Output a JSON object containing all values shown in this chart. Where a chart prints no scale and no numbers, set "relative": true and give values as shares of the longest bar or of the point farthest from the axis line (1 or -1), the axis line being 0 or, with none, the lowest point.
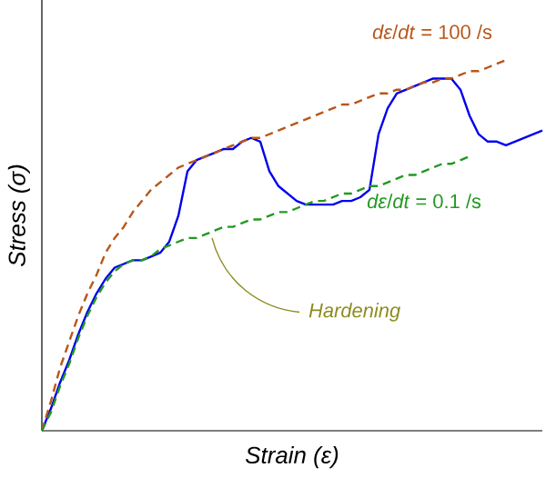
{
  "chart_data": {
    "type": "line",
    "relative": true,
    "xlabel": "Strain (ε)",
    "ylabel": "Stress (σ)",
    "categories": [
      null,
      null,
      null,
      null,
      null,
      null,
      null,
      null,
      null,
      null,
      null,
      null,
      null,
      null,
      null,
      null,
      null,
      null,
      null,
      null,
      null,
      null,
      null,
      null,
      null,
      null,
      null,
      null,
      null,
      null,
      null,
      null,
      null,
      null,
      null,
      null,
      null,
      null,
      null,
      null,
      null,
      null,
      null,
      null,
      null,
      null,
      null,
      null,
      null,
      null,
      null,
      null,
      null,
      null,
      null,
      null
    ],
    "series": [
      {
        "color": "#0000ee",
        "line_style": "solid",
        "values": [
          0,
          0.06,
          0.13,
          0.19,
          0.26,
          0.32,
          0.37,
          0.41,
          0.44,
          0.45,
          0.46,
          0.46,
          0.47,
          0.48,
          0.51,
          0.58,
          0.7,
          0.73,
          0.74,
          0.75,
          0.76,
          0.76,
          0.78,
          0.79,
          0.78,
          0.7,
          0.66,
          0.64,
          0.62,
          0.61,
          0.61,
          0.61,
          0.61,
          0.62,
          0.62,
          0.63,
          0.65,
          0.8,
          0.87,
          0.91,
          0.92,
          0.93,
          0.94,
          0.95,
          0.95,
          0.95,
          0.92,
          0.85,
          0.8,
          0.78,
          0.78,
          0.77,
          0.78,
          0.79,
          0.8,
          0.81
        ]
      },
      {
        "name": "*dε*/*dt* = 100 /s",
        "color": "#b8561a",
        "line_style": "dashed",
        "values": [
          0,
          0.08,
          0.17,
          0.24,
          0.31,
          0.37,
          0.42,
          0.48,
          0.52,
          0.55,
          0.59,
          0.62,
          0.65,
          0.67,
          0.69,
          0.71,
          0.72,
          0.73,
          0.74,
          0.75,
          0.76,
          0.77,
          0.78,
          0.79,
          0.79,
          0.8,
          0.81,
          0.82,
          0.83,
          0.84,
          0.85,
          0.86,
          0.87,
          0.88,
          0.88,
          0.89,
          0.9,
          0.91,
          0.91,
          0.92,
          0.92,
          0.93,
          0.94,
          0.94,
          0.95,
          0.95,
          0.96,
          0.97,
          0.97,
          0.98,
          0.99,
          1.0,
          null,
          null,
          null,
          null
        ]
      },
      {
        "name": "*dε*/*dt* = 0.1 /s",
        "color": "#229922",
        "line_style": "dashed",
        "values": [
          0,
          0.05,
          0.12,
          0.18,
          0.25,
          0.31,
          0.36,
          0.4,
          0.43,
          0.45,
          0.46,
          0.46,
          0.47,
          0.49,
          0.5,
          0.51,
          0.52,
          0.52,
          0.53,
          0.54,
          0.55,
          0.55,
          0.56,
          0.57,
          0.57,
          0.58,
          0.59,
          0.59,
          0.6,
          0.61,
          0.62,
          0.62,
          0.63,
          0.64,
          0.64,
          0.65,
          0.66,
          0.66,
          0.67,
          0.68,
          0.69,
          0.69,
          0.7,
          0.71,
          0.72,
          0.72,
          0.73,
          0.74,
          null,
          null,
          null,
          null,
          null,
          null,
          null,
          null
        ]
      }
    ],
    "annotations": [
      "Hardening"
    ],
    "legend": false
  }
}
